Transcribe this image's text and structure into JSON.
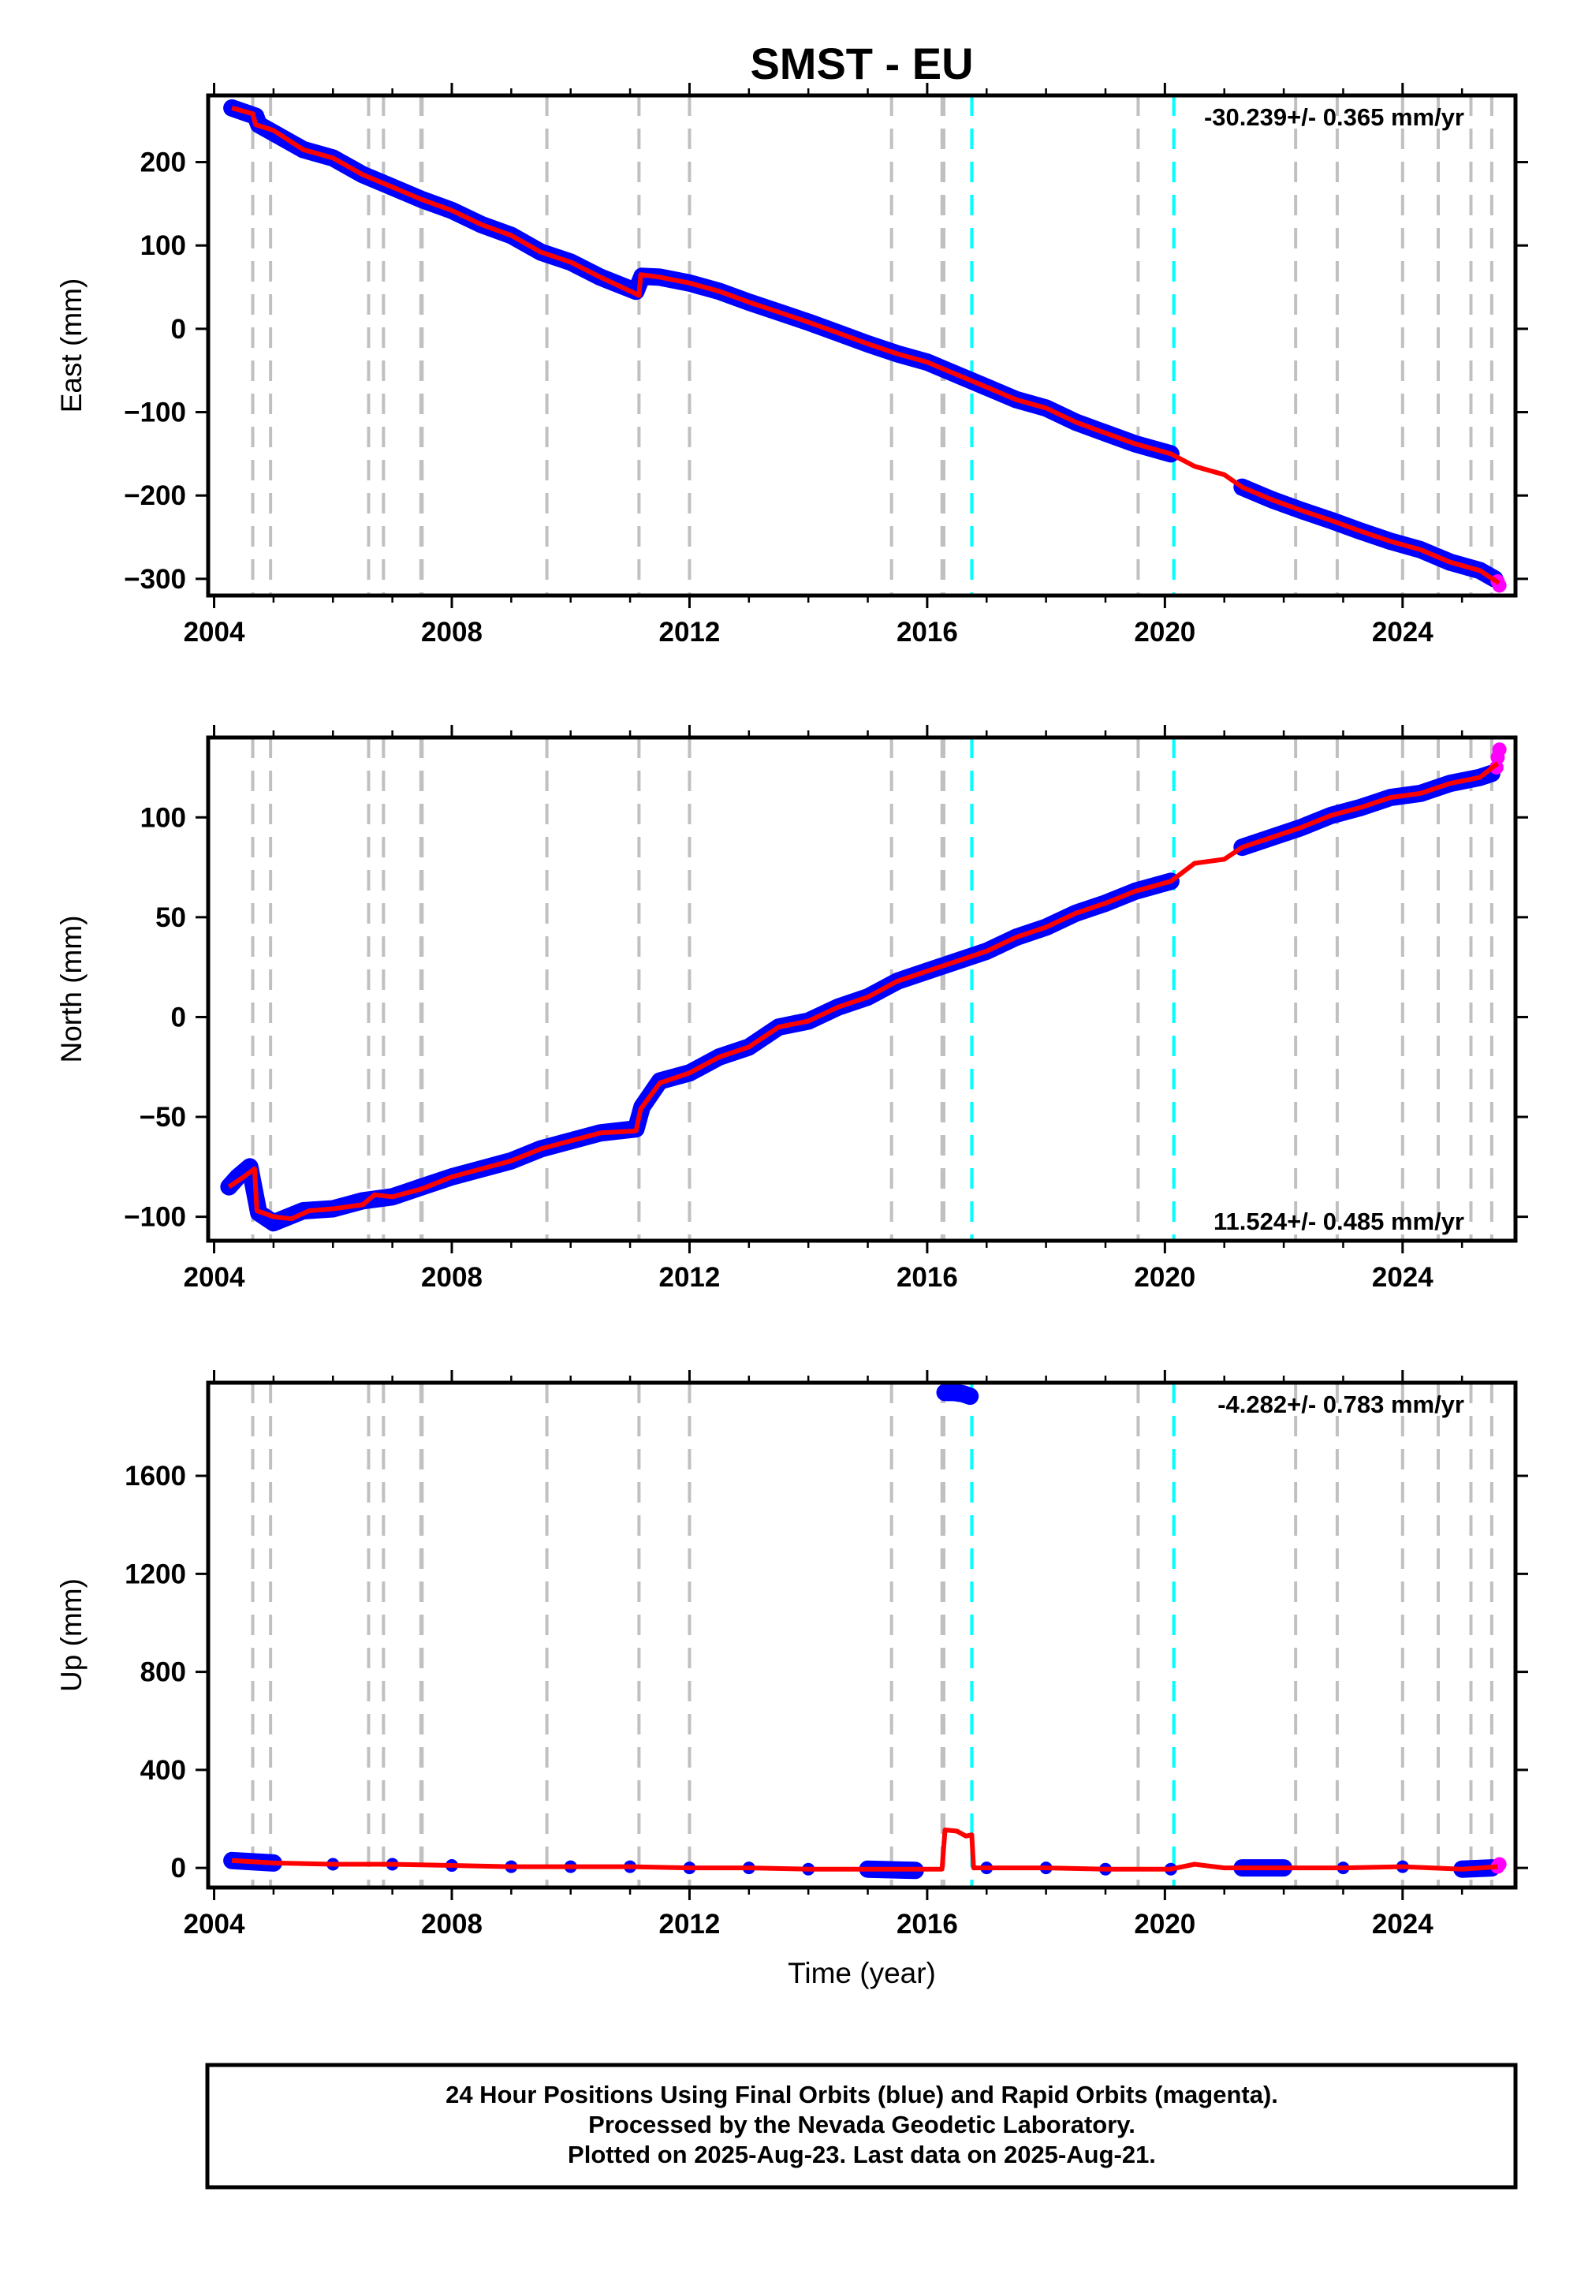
{
  "title": "SMST - EU",
  "x_axis_label": "Time (year)",
  "footer": [
    "24 Hour Positions Using Final Orbits (blue) and Rapid Orbits (magenta).",
    "Processed by the Nevada Geodetic Laboratory.",
    "Plotted on 2025-Aug-23. Last data on 2025-Aug-21."
  ],
  "colors": {
    "final_orbits": "#0000ff",
    "rapid_orbits": "#ff00ff",
    "model": "#ff0000",
    "equipment_change": "#c0c0c0",
    "earthquake": "#00ffff"
  },
  "chart_data": [
    {
      "type": "scatter",
      "name": "east",
      "ylabel": "East (mm)",
      "rate_label": "-30.239+/- 0.365 mm/yr",
      "xlim": [
        2003.9,
        2025.9
      ],
      "ylim": [
        -320,
        280
      ],
      "x_ticks": [
        2004,
        2008,
        2012,
        2016,
        2020,
        2024
      ],
      "y_ticks": [
        -300,
        -200,
        -100,
        0,
        100,
        200
      ],
      "grid": false,
      "observations_blue": [
        [
          2004.3,
          265
        ],
        [
          2004.7,
          255
        ],
        [
          2004.75,
          245
        ],
        [
          2005,
          235
        ],
        [
          2005.5,
          215
        ],
        [
          2006,
          205
        ],
        [
          2006.5,
          185
        ],
        [
          2007,
          170
        ],
        [
          2007.5,
          155
        ],
        [
          2008,
          142
        ],
        [
          2008.5,
          125
        ],
        [
          2009,
          112
        ],
        [
          2009.5,
          92
        ],
        [
          2010,
          80
        ],
        [
          2010.5,
          62
        ],
        [
          2011.1,
          45
        ],
        [
          2011.2,
          63
        ],
        [
          2011.5,
          62
        ],
        [
          2012,
          55
        ],
        [
          2012.5,
          45
        ],
        [
          2013,
          32
        ],
        [
          2013.5,
          20
        ],
        [
          2014,
          8
        ],
        [
          2014.5,
          -5
        ],
        [
          2015,
          -18
        ],
        [
          2015.5,
          -30
        ],
        [
          2016,
          -40
        ],
        [
          2016.5,
          -55
        ],
        [
          2017,
          -70
        ],
        [
          2017.5,
          -85
        ],
        [
          2018,
          -95
        ],
        [
          2018.5,
          -112
        ],
        [
          2019,
          -125
        ],
        [
          2019.5,
          -138
        ],
        [
          2020.1,
          -150
        ],
        [
          2021.3,
          -190
        ],
        [
          2021.8,
          -205
        ],
        [
          2022.3,
          -218
        ],
        [
          2022.8,
          -230
        ],
        [
          2023.3,
          -243
        ],
        [
          2023.8,
          -255
        ],
        [
          2024.3,
          -265
        ],
        [
          2024.8,
          -280
        ],
        [
          2025.3,
          -290
        ],
        [
          2025.55,
          -300
        ]
      ],
      "observations_magenta": [
        [
          2025.6,
          -303
        ],
        [
          2025.63,
          -308
        ]
      ],
      "model_line": [
        [
          2004.3,
          265
        ],
        [
          2004.65,
          258
        ],
        [
          2004.7,
          245
        ],
        [
          2005,
          238
        ],
        [
          2005.5,
          215
        ],
        [
          2006,
          205
        ],
        [
          2006.5,
          185
        ],
        [
          2007,
          170
        ],
        [
          2007.5,
          155
        ],
        [
          2008,
          142
        ],
        [
          2008.5,
          125
        ],
        [
          2009,
          112
        ],
        [
          2009.5,
          92
        ],
        [
          2010,
          80
        ],
        [
          2010.5,
          62
        ],
        [
          2011.1,
          42
        ],
        [
          2011.15,
          40
        ],
        [
          2011.18,
          65
        ],
        [
          2011.5,
          62
        ],
        [
          2012,
          55
        ],
        [
          2012.5,
          45
        ],
        [
          2013,
          32
        ],
        [
          2013.5,
          20
        ],
        [
          2014,
          8
        ],
        [
          2014.5,
          -5
        ],
        [
          2015,
          -18
        ],
        [
          2015.5,
          -30
        ],
        [
          2016,
          -40
        ],
        [
          2016.5,
          -55
        ],
        [
          2017,
          -70
        ],
        [
          2017.5,
          -85
        ],
        [
          2018,
          -95
        ],
        [
          2018.5,
          -112
        ],
        [
          2019,
          -125
        ],
        [
          2019.5,
          -138
        ],
        [
          2020.1,
          -150
        ],
        [
          2020.5,
          -165
        ],
        [
          2021,
          -175
        ],
        [
          2021.3,
          -190
        ],
        [
          2021.8,
          -205
        ],
        [
          2022.3,
          -218
        ],
        [
          2022.8,
          -230
        ],
        [
          2023.3,
          -243
        ],
        [
          2023.8,
          -255
        ],
        [
          2024.3,
          -265
        ],
        [
          2024.8,
          -280
        ],
        [
          2025.3,
          -290
        ],
        [
          2025.62,
          -305
        ]
      ]
    },
    {
      "type": "scatter",
      "name": "north",
      "ylabel": "North (mm)",
      "rate_label": "11.524+/- 0.485 mm/yr",
      "xlim": [
        2003.9,
        2025.9
      ],
      "ylim": [
        -112,
        140
      ],
      "x_ticks": [
        2004,
        2008,
        2012,
        2016,
        2020,
        2024
      ],
      "y_ticks": [
        -100,
        -50,
        0,
        50,
        100
      ],
      "grid": false,
      "observations_blue": [
        [
          2004.25,
          -85
        ],
        [
          2004.4,
          -80
        ],
        [
          2004.6,
          -75
        ],
        [
          2004.75,
          -98
        ],
        [
          2005,
          -103
        ],
        [
          2005.5,
          -97
        ],
        [
          2006,
          -96
        ],
        [
          2006.5,
          -92
        ],
        [
          2007,
          -90
        ],
        [
          2007.5,
          -85
        ],
        [
          2008,
          -80
        ],
        [
          2008.5,
          -76
        ],
        [
          2009,
          -72
        ],
        [
          2009.5,
          -66
        ],
        [
          2010,
          -62
        ],
        [
          2010.5,
          -58
        ],
        [
          2011.1,
          -56
        ],
        [
          2011.2,
          -45
        ],
        [
          2011.5,
          -32
        ],
        [
          2012,
          -28
        ],
        [
          2012.5,
          -20
        ],
        [
          2013,
          -15
        ],
        [
          2013.5,
          -5
        ],
        [
          2014,
          -2
        ],
        [
          2014.5,
          5
        ],
        [
          2015,
          10
        ],
        [
          2015.5,
          18
        ],
        [
          2016,
          23
        ],
        [
          2016.5,
          28
        ],
        [
          2017,
          33
        ],
        [
          2017.5,
          40
        ],
        [
          2018,
          45
        ],
        [
          2018.5,
          52
        ],
        [
          2019,
          57
        ],
        [
          2019.5,
          63
        ],
        [
          2020.1,
          68
        ],
        [
          2021.3,
          85
        ],
        [
          2021.8,
          90
        ],
        [
          2022.3,
          95
        ],
        [
          2022.8,
          101
        ],
        [
          2023.3,
          105
        ],
        [
          2023.8,
          110
        ],
        [
          2024.3,
          112
        ],
        [
          2024.8,
          117
        ],
        [
          2025.3,
          120
        ],
        [
          2025.5,
          122
        ]
      ],
      "observations_magenta": [
        [
          2025.58,
          125
        ],
        [
          2025.6,
          130
        ],
        [
          2025.63,
          134
        ]
      ],
      "model_line": [
        [
          2004.25,
          -85
        ],
        [
          2004.5,
          -80
        ],
        [
          2004.68,
          -76
        ],
        [
          2004.72,
          -97
        ],
        [
          2005,
          -100
        ],
        [
          2005.3,
          -101
        ],
        [
          2005.6,
          -97
        ],
        [
          2006,
          -96
        ],
        [
          2006.5,
          -94
        ],
        [
          2006.7,
          -89
        ],
        [
          2007,
          -90
        ],
        [
          2007.5,
          -86
        ],
        [
          2008,
          -80
        ],
        [
          2008.5,
          -76
        ],
        [
          2009,
          -72
        ],
        [
          2009.5,
          -66
        ],
        [
          2010,
          -62
        ],
        [
          2010.5,
          -58
        ],
        [
          2011.1,
          -57
        ],
        [
          2011.18,
          -46
        ],
        [
          2011.5,
          -33
        ],
        [
          2012,
          -28
        ],
        [
          2012.5,
          -20
        ],
        [
          2013,
          -15
        ],
        [
          2013.5,
          -5
        ],
        [
          2014,
          -2
        ],
        [
          2014.5,
          5
        ],
        [
          2015,
          10
        ],
        [
          2015.5,
          18
        ],
        [
          2016,
          23
        ],
        [
          2016.5,
          28
        ],
        [
          2017,
          33
        ],
        [
          2017.5,
          40
        ],
        [
          2018,
          45
        ],
        [
          2018.5,
          52
        ],
        [
          2019,
          57
        ],
        [
          2019.5,
          63
        ],
        [
          2020.1,
          68
        ],
        [
          2020.5,
          77
        ],
        [
          2021,
          79
        ],
        [
          2021.3,
          85
        ],
        [
          2021.8,
          90
        ],
        [
          2022.3,
          95
        ],
        [
          2022.8,
          101
        ],
        [
          2023.3,
          105
        ],
        [
          2023.8,
          110
        ],
        [
          2024.3,
          112
        ],
        [
          2024.8,
          117
        ],
        [
          2025.3,
          120
        ],
        [
          2025.6,
          127
        ]
      ]
    },
    {
      "type": "scatter",
      "name": "up",
      "ylabel": "Up (mm)",
      "rate_label": "-4.282+/- 0.783 mm/yr",
      "xlim": [
        2003.9,
        2025.9
      ],
      "ylim": [
        -80,
        1980
      ],
      "x_ticks": [
        2004,
        2008,
        2012,
        2016,
        2020,
        2024
      ],
      "y_ticks": [
        0,
        400,
        800,
        1200,
        1600
      ],
      "grid": false,
      "observations_blue": [
        [
          2004.3,
          30
        ],
        [
          2005,
          20
        ],
        [
          2006,
          15
        ],
        [
          2007,
          15
        ],
        [
          2008,
          10
        ],
        [
          2009,
          5
        ],
        [
          2010,
          5
        ],
        [
          2011,
          5
        ],
        [
          2012,
          0
        ],
        [
          2013,
          0
        ],
        [
          2014,
          -5
        ],
        [
          2015,
          -5
        ],
        [
          2015.8,
          -10
        ],
        [
          2016.3,
          1940
        ],
        [
          2016.45,
          1940
        ],
        [
          2016.6,
          1935
        ],
        [
          2016.72,
          1925
        ],
        [
          2017,
          0
        ],
        [
          2018,
          0
        ],
        [
          2019,
          -5
        ],
        [
          2020.1,
          -5
        ],
        [
          2021.3,
          0
        ],
        [
          2022,
          0
        ],
        [
          2023,
          0
        ],
        [
          2024,
          5
        ],
        [
          2025,
          -5
        ],
        [
          2025.5,
          0
        ]
      ],
      "observations_magenta": [
        [
          2025.6,
          5
        ],
        [
          2025.63,
          15
        ]
      ],
      "model_line": [
        [
          2004.3,
          30
        ],
        [
          2005,
          20
        ],
        [
          2006,
          15
        ],
        [
          2007,
          15
        ],
        [
          2008,
          10
        ],
        [
          2009,
          5
        ],
        [
          2010,
          5
        ],
        [
          2011,
          5
        ],
        [
          2012,
          0
        ],
        [
          2013,
          0
        ],
        [
          2014,
          -5
        ],
        [
          2015,
          -5
        ],
        [
          2016.25,
          -5
        ],
        [
          2016.3,
          155
        ],
        [
          2016.5,
          150
        ],
        [
          2016.65,
          130
        ],
        [
          2016.75,
          135
        ],
        [
          2016.78,
          0
        ],
        [
          2017,
          0
        ],
        [
          2018,
          0
        ],
        [
          2019,
          -5
        ],
        [
          2020.1,
          -5
        ],
        [
          2020.5,
          15
        ],
        [
          2021,
          0
        ],
        [
          2021.3,
          0
        ],
        [
          2022,
          0
        ],
        [
          2023,
          0
        ],
        [
          2024,
          5
        ],
        [
          2025,
          -5
        ],
        [
          2025.6,
          5
        ]
      ]
    }
  ],
  "equipment_changes": [
    2004.65,
    2004.95,
    2006.6,
    2006.85,
    2007.48,
    2007.5,
    2009.6,
    2011.15,
    2012.0,
    2015.4,
    2016.25,
    2016.28,
    2019.55,
    2022.2,
    2022.9,
    2024.0,
    2024.6,
    2025.15,
    2025.5
  ],
  "earthquakes": [
    2016.75,
    2020.15
  ]
}
